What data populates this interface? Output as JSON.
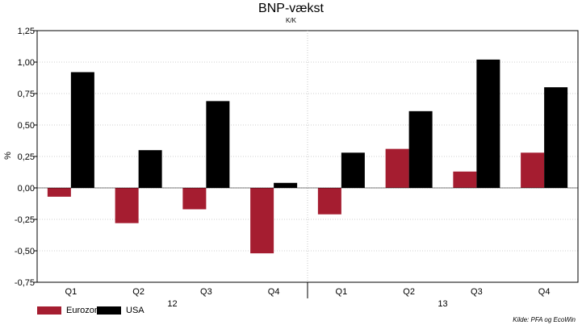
{
  "chart_data": {
    "type": "bar",
    "title": "BNP-vækst",
    "subtitle": "K/K",
    "ylabel": "%",
    "xlabel": "",
    "ylim": [
      -0.75,
      1.25
    ],
    "yticks": [
      "1,25",
      "1,00",
      "0,75",
      "0,50",
      "0,25",
      "0,00",
      "-0,25",
      "-0,50",
      "-0,75"
    ],
    "ytick_values": [
      1.25,
      1.0,
      0.75,
      0.5,
      0.25,
      0.0,
      -0.25,
      -0.5,
      -0.75
    ],
    "categories": [
      "Q1",
      "Q2",
      "Q3",
      "Q4",
      "Q1",
      "Q2",
      "Q3",
      "Q4"
    ],
    "groups": [
      {
        "label": "12",
        "start": 0,
        "end": 4
      },
      {
        "label": "13",
        "start": 4,
        "end": 8
      }
    ],
    "series": [
      {
        "name": "Eurozonen",
        "color": "#a51d30",
        "values": [
          -0.07,
          -0.28,
          -0.17,
          -0.52,
          -0.21,
          0.31,
          0.13,
          0.28
        ]
      },
      {
        "name": "USA",
        "color": "#000000",
        "values": [
          0.92,
          0.3,
          0.69,
          0.04,
          0.28,
          0.61,
          1.02,
          0.8
        ]
      }
    ],
    "legend_position": "bottom-left",
    "grid": "horizontal dashed",
    "source": "Kilde: PFA og EcoWin"
  }
}
